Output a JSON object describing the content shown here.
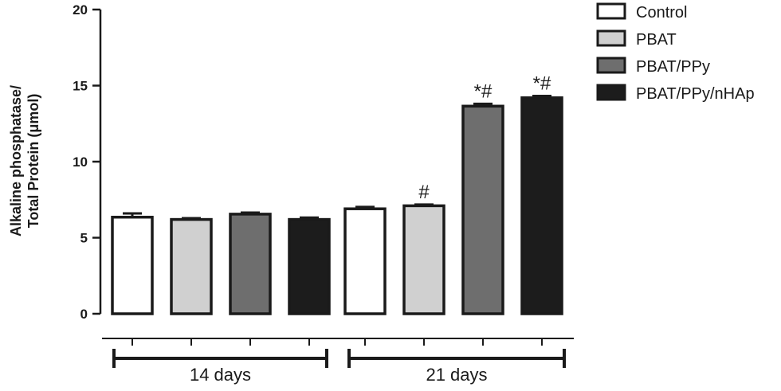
{
  "chart_data": {
    "type": "bar",
    "ylabel_line1": "Alkaline phosphatase/",
    "ylabel_line2": "Total Protein (μmol)",
    "ylim": [
      0,
      20
    ],
    "yticks": [
      "0",
      "5",
      "10",
      "15",
      "20"
    ],
    "groups": [
      "14 days",
      "21 days"
    ],
    "series": [
      {
        "name": "Control",
        "color": "#ffffff",
        "values": [
          6.35,
          6.9
        ],
        "errors": [
          0.25,
          0.12
        ],
        "annotations": [
          "",
          ""
        ]
      },
      {
        "name": "PBAT",
        "color": "#d0d0d0",
        "values": [
          6.2,
          7.1
        ],
        "errors": [
          0.08,
          0.08
        ],
        "annotations": [
          "",
          "#"
        ]
      },
      {
        "name": "PBAT/PPy",
        "color": "#6e6e6e",
        "values": [
          6.55,
          13.65
        ],
        "errors": [
          0.1,
          0.15
        ],
        "annotations": [
          "",
          "*#"
        ]
      },
      {
        "name": "PBAT/PPy/nHAp",
        "color": "#1c1c1c",
        "values": [
          6.2,
          14.2
        ],
        "errors": [
          0.12,
          0.12
        ],
        "annotations": [
          "",
          "*#"
        ]
      }
    ],
    "legend": "top-right",
    "grid": false
  }
}
